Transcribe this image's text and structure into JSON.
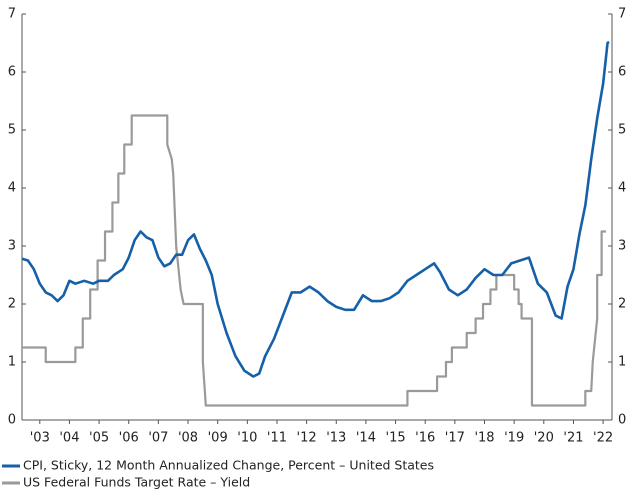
{
  "chart_data": {
    "type": "line",
    "xlim": [
      2002.9,
      2022.8
    ],
    "xticks": [
      {
        "value": 2003.5,
        "label": "'03"
      },
      {
        "value": 2004.5,
        "label": "'04"
      },
      {
        "value": 2005.5,
        "label": "'05"
      },
      {
        "value": 2006.5,
        "label": "'06"
      },
      {
        "value": 2007.5,
        "label": "'07"
      },
      {
        "value": 2008.5,
        "label": "'08"
      },
      {
        "value": 2009.5,
        "label": "'09"
      },
      {
        "value": 2010.5,
        "label": "'10"
      },
      {
        "value": 2011.5,
        "label": "'11"
      },
      {
        "value": 2012.5,
        "label": "'12"
      },
      {
        "value": 2013.5,
        "label": "'13"
      },
      {
        "value": 2014.5,
        "label": "'14"
      },
      {
        "value": 2015.5,
        "label": "'15"
      },
      {
        "value": 2016.5,
        "label": "'16"
      },
      {
        "value": 2017.5,
        "label": "'17"
      },
      {
        "value": 2018.5,
        "label": "'18"
      },
      {
        "value": 2019.5,
        "label": "'19"
      },
      {
        "value": 2020.5,
        "label": "'20"
      },
      {
        "value": 2021.5,
        "label": "'21"
      },
      {
        "value": 2022.5,
        "label": "'22"
      }
    ],
    "ylim": [
      0,
      7
    ],
    "yticks": [
      0,
      1,
      2,
      3,
      4,
      5,
      6,
      7
    ],
    "y2lim": [
      0,
      7
    ],
    "y2ticks": [
      0,
      1,
      2,
      3,
      4,
      5,
      6,
      7
    ],
    "series": [
      {
        "name": "CPI, Sticky, 12 Month Annualized Change, Percent – United States",
        "color": "#1560a8",
        "x": [
          2002.9,
          2003.1,
          2003.3,
          2003.5,
          2003.7,
          2003.9,
          2004.1,
          2004.3,
          2004.5,
          2004.7,
          2005.0,
          2005.3,
          2005.5,
          2005.8,
          2006.0,
          2006.3,
          2006.5,
          2006.7,
          2006.9,
          2007.1,
          2007.3,
          2007.5,
          2007.7,
          2007.9,
          2008.1,
          2008.3,
          2008.5,
          2008.7,
          2008.9,
          2009.1,
          2009.3,
          2009.5,
          2009.8,
          2010.1,
          2010.4,
          2010.7,
          2010.9,
          2011.1,
          2011.4,
          2011.7,
          2012.0,
          2012.3,
          2012.6,
          2012.9,
          2013.2,
          2013.5,
          2013.8,
          2014.1,
          2014.4,
          2014.7,
          2015.0,
          2015.3,
          2015.6,
          2015.9,
          2016.2,
          2016.5,
          2016.8,
          2017.0,
          2017.3,
          2017.6,
          2017.9,
          2018.2,
          2018.5,
          2018.8,
          2019.1,
          2019.4,
          2019.7,
          2020.0,
          2020.3,
          2020.6,
          2020.9,
          2021.1,
          2021.3,
          2021.5,
          2021.7,
          2021.9,
          2022.1,
          2022.3,
          2022.5,
          2022.65,
          2022.7
        ],
        "values": [
          2.78,
          2.75,
          2.6,
          2.35,
          2.2,
          2.15,
          2.05,
          2.15,
          2.4,
          2.35,
          2.4,
          2.35,
          2.4,
          2.4,
          2.5,
          2.6,
          2.8,
          3.1,
          3.25,
          3.15,
          3.1,
          2.8,
          2.65,
          2.7,
          2.85,
          2.85,
          3.1,
          3.2,
          2.95,
          2.75,
          2.5,
          2.0,
          1.5,
          1.1,
          0.85,
          0.75,
          0.8,
          1.1,
          1.4,
          1.8,
          2.2,
          2.2,
          2.3,
          2.2,
          2.05,
          1.95,
          1.9,
          1.9,
          2.15,
          2.05,
          2.05,
          2.1,
          2.2,
          2.4,
          2.5,
          2.6,
          2.7,
          2.55,
          2.25,
          2.15,
          2.25,
          2.45,
          2.6,
          2.5,
          2.5,
          2.7,
          2.75,
          2.8,
          2.35,
          2.2,
          1.8,
          1.75,
          2.3,
          2.6,
          3.2,
          3.7,
          4.5,
          5.2,
          5.8,
          6.5,
          6.52
        ]
      },
      {
        "name": "US Federal Funds Target Rate – Yield",
        "color": "#9a9a9a",
        "axis": "y2",
        "x": [
          2002.9,
          2003.7,
          2003.7,
          2004.7,
          2004.7,
          2004.95,
          2004.95,
          2005.2,
          2005.2,
          2005.45,
          2005.45,
          2005.7,
          2005.7,
          2005.95,
          2005.95,
          2006.15,
          2006.15,
          2006.35,
          2006.35,
          2006.6,
          2006.6,
          2007.8,
          2007.8,
          2007.95,
          2008.0,
          2008.1,
          2008.25,
          2008.35,
          2009.0,
          2009.0,
          2009.1,
          2015.9,
          2015.9,
          2016.9,
          2016.9,
          2017.2,
          2017.2,
          2017.4,
          2017.4,
          2017.9,
          2017.9,
          2018.2,
          2018.2,
          2018.45,
          2018.45,
          2018.7,
          2018.7,
          2018.9,
          2018.9,
          2019.5,
          2019.5,
          2019.65,
          2019.65,
          2019.75,
          2019.75,
          2020.1,
          2020.1,
          2021.9,
          2021.9,
          2022.1,
          2022.15,
          2022.3,
          2022.3,
          2022.45,
          2022.45,
          2022.6
        ],
        "values": [
          1.25,
          1.25,
          1.0,
          1.0,
          1.25,
          1.25,
          1.75,
          1.75,
          2.25,
          2.25,
          2.75,
          2.75,
          3.25,
          3.25,
          3.75,
          3.75,
          4.25,
          4.25,
          4.75,
          4.75,
          5.25,
          5.25,
          4.75,
          4.5,
          4.25,
          3.0,
          2.25,
          2.0,
          2.0,
          1.0,
          0.25,
          0.25,
          0.5,
          0.5,
          0.75,
          0.75,
          1.0,
          1.0,
          1.25,
          1.25,
          1.5,
          1.5,
          1.75,
          1.75,
          2.0,
          2.0,
          2.25,
          2.25,
          2.5,
          2.5,
          2.25,
          2.25,
          2.0,
          2.0,
          1.75,
          1.75,
          0.25,
          0.25,
          0.5,
          0.5,
          1.0,
          1.75,
          2.5,
          2.5,
          3.25,
          3.25
        ]
      }
    ]
  }
}
